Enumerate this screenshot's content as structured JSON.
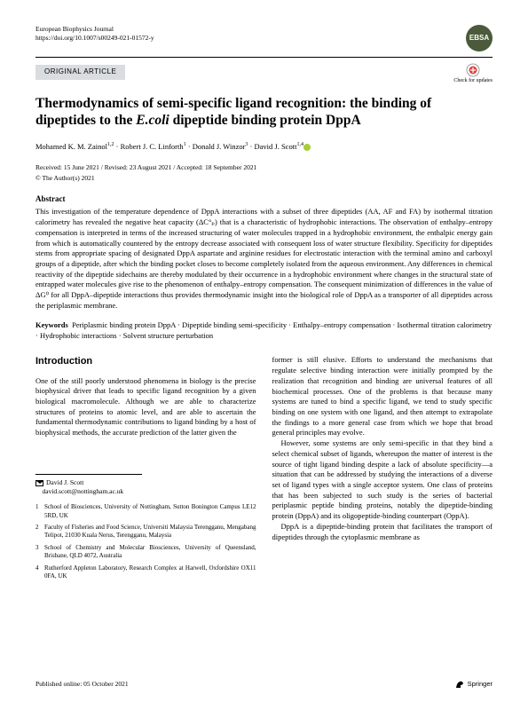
{
  "header": {
    "journal": "European Biophysics Journal",
    "doi": "https://doi.org/10.1007/s00249-021-01572-y",
    "logo_text": "EBSA",
    "logo_bg": "#4a5a3a"
  },
  "article_tag": "ORIGINAL ARTICLE",
  "check_updates": "Check for updates",
  "title_part1": "Thermodynamics of semi-specific ligand recognition: the binding of dipeptides to the ",
  "title_italic": "E.coli",
  "title_part2": " dipeptide binding protein DppA",
  "authors_html": "Mohamed K. M. Zainol<sup>1,2</sup> · Robert J. C. Linforth<sup>1</sup> · Donald J. Winzor<sup>3</sup> · David J. Scott<sup>1,4</sup>",
  "dates": "Received: 15 June 2021 / Revised: 23 August 2021 / Accepted: 18 September 2021",
  "copyright": "© The Author(s) 2021",
  "abstract_head": "Abstract",
  "abstract_body": "This investigation of the temperature dependence of DppA interactions with a subset of three dipeptides (AA, AF and FA) by isothermal titration calorimetry has revealed the negative heat capacity (ΔC°ₚ) that is a characteristic of hydrophobic interactions. The observation of enthalpy–entropy compensation is interpreted in terms of the increased structuring of water molecules trapped in a hydrophobic environment, the enthalpic energy gain from which is automatically countered by the entropy decrease associated with consequent loss of water structure flexibility. Specificity for dipeptides stems from appropriate spacing of designated DppA aspartate and arginine residues for electrostatic interaction with the terminal amino and carboxyl groups of a dipeptide, after which the binding pocket closes to become completely isolated from the aqueous environment. Any differences in chemical reactivity of the dipeptide sidechains are thereby modulated by their occurrence in a hydrophobic environment where changes in the structural state of entrapped water molecules give rise to the phenomenon of enthalpy–entropy compensation. The consequent minimization of differences in the value of ΔG⁰ for all DppA–dipeptide interactions thus provides thermodynamic insight into the biological role of DppA as a transporter of all dipeptides across the periplasmic membrane.",
  "keywords_label": "Keywords",
  "keywords": "Periplasmic binding protein DppA · Dipeptide binding semi-specificity · Enthalpy–entropy compensation · Isothermal titration calorimetry · Hydrophobic interactions · Solvent structure perturbation",
  "intro_head": "Introduction",
  "col_left": "One of the still poorly understood phenomena in biology is the precise biophysical driver that leads to specific ligand recognition by a given biological macromolecule. Although we are able to characterize structures of proteins to atomic level, and are able to ascertain the fundamental thermodynamic contributions to ligand binding by a host of biophysical methods, the accurate prediction of the latter given the",
  "col_right_p1": "former is still elusive. Efforts to understand the mechanisms that regulate selective binding interaction were initially prompted by the realization that recognition and binding are universal features of all biochemical processes. One of the problems is that because many systems are tuned to bind a specific ligand, we tend to study specific binding on one system with one ligand, and then attempt to extrapolate the findings to a more general case from which we hope that broad general principles may evolve.",
  "col_right_p2": "However, some systems are only semi-specific in that they bind a select chemical subset of ligands, whereupon the matter of interest is the source of tight ligand binding despite a lack of absolute specificity—a situation that can be addressed by studying the interactions of a diverse set of ligand types with a single acceptor system. One class of proteins that has been subjected to such study is the series of bacterial periplasmic peptide binding proteins, notably the dipeptide-binding protein (DppA) and its oligopeptide-binding counterpart (OppA).",
  "col_right_p3": "DppA is a dipeptide-binding protein that facilitates the transport of dipeptides through the cytoplasmic membrane as",
  "correspondence": {
    "name": "David J. Scott",
    "email": "david.scott@nottingham.ac.uk"
  },
  "affiliations": [
    {
      "num": "1",
      "text": "School of Biosciences, University of Nottingham, Sutton Bonington Campus LE12 5RD, UK"
    },
    {
      "num": "2",
      "text": "Faculty of Fisheries and Food Science, Universiti Malaysia Terengganu, Mengabang Telipot, 21030 Kuala Nerus, Terengganu, Malaysia"
    },
    {
      "num": "3",
      "text": "School of Chemistry and Molecular Biosciences, University of Queensland, Brisbane, QLD 4072, Australia"
    },
    {
      "num": "4",
      "text": "Rutherford Appleton Laboratory, Research Complex at Harwell, Oxfordshire OX11 0FA, UK"
    }
  ],
  "footer": {
    "published": "Published online: 05 October 2021",
    "publisher": "Springer"
  }
}
